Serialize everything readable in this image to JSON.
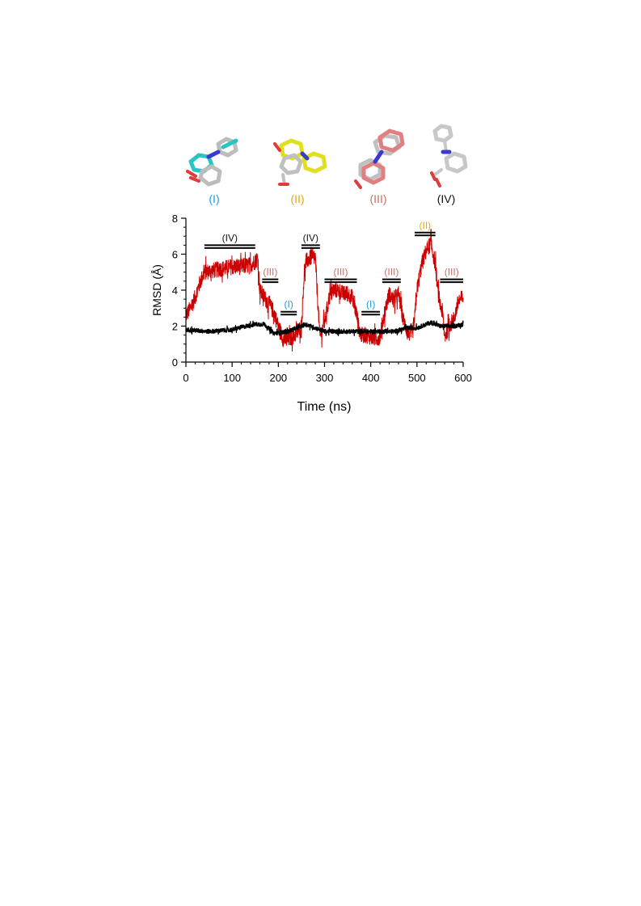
{
  "structures": [
    {
      "label": "(I)",
      "color": "#1a9fd9"
    },
    {
      "label": "(II)",
      "color": "#e6a817"
    },
    {
      "label": "(III)",
      "color": "#c96f66"
    },
    {
      "label": "(IV)",
      "color": "#111111"
    }
  ],
  "chart_data": {
    "type": "line",
    "xlabel": "Time (ns)",
    "ylabel": "RMSD (Å)",
    "xlim": [
      0,
      600
    ],
    "ylim": [
      0,
      8
    ],
    "xticks": [
      "0",
      "100",
      "200",
      "300",
      "400",
      "500",
      "600"
    ],
    "yticks": [
      "0",
      "2",
      "4",
      "6",
      "8"
    ],
    "series": [
      {
        "color": "#cc0000",
        "points": [
          [
            0,
            2.6
          ],
          [
            10,
            3.0
          ],
          [
            20,
            3.6
          ],
          [
            30,
            4.4
          ],
          [
            40,
            5.0
          ],
          [
            60,
            5.1
          ],
          [
            80,
            5.2
          ],
          [
            100,
            5.3
          ],
          [
            120,
            5.3
          ],
          [
            140,
            5.4
          ],
          [
            150,
            5.6
          ],
          [
            155,
            5.8
          ],
          [
            160,
            4.0
          ],
          [
            170,
            3.6
          ],
          [
            180,
            3.2
          ],
          [
            190,
            2.8
          ],
          [
            200,
            2.0
          ],
          [
            210,
            1.3
          ],
          [
            220,
            1.2
          ],
          [
            230,
            1.4
          ],
          [
            240,
            1.6
          ],
          [
            250,
            2.0
          ],
          [
            255,
            4.5
          ],
          [
            260,
            5.6
          ],
          [
            270,
            5.8
          ],
          [
            280,
            5.8
          ],
          [
            285,
            3.5
          ],
          [
            290,
            1.4
          ],
          [
            300,
            2.2
          ],
          [
            310,
            3.6
          ],
          [
            320,
            4.0
          ],
          [
            330,
            4.0
          ],
          [
            340,
            3.8
          ],
          [
            350,
            3.8
          ],
          [
            360,
            3.6
          ],
          [
            370,
            2.6
          ],
          [
            375,
            1.8
          ],
          [
            380,
            1.5
          ],
          [
            390,
            1.5
          ],
          [
            400,
            1.4
          ],
          [
            410,
            1.3
          ],
          [
            420,
            1.4
          ],
          [
            430,
            2.8
          ],
          [
            440,
            3.8
          ],
          [
            450,
            3.4
          ],
          [
            460,
            3.8
          ],
          [
            470,
            2.4
          ],
          [
            480,
            1.6
          ],
          [
            490,
            1.6
          ],
          [
            495,
            2.4
          ],
          [
            500,
            4.0
          ],
          [
            510,
            5.4
          ],
          [
            520,
            6.2
          ],
          [
            530,
            6.6
          ],
          [
            540,
            5.4
          ],
          [
            545,
            4.0
          ],
          [
            550,
            3.2
          ],
          [
            555,
            2.8
          ],
          [
            560,
            1.4
          ],
          [
            570,
            2.0
          ],
          [
            580,
            2.4
          ],
          [
            590,
            3.4
          ],
          [
            600,
            3.6
          ]
        ],
        "noise": 0.45
      },
      {
        "color": "#000000",
        "points": [
          [
            0,
            1.8
          ],
          [
            50,
            1.7
          ],
          [
            100,
            1.8
          ],
          [
            130,
            2.0
          ],
          [
            150,
            2.1
          ],
          [
            170,
            2.1
          ],
          [
            190,
            1.6
          ],
          [
            220,
            1.7
          ],
          [
            260,
            2.1
          ],
          [
            280,
            1.9
          ],
          [
            300,
            1.7
          ],
          [
            350,
            1.7
          ],
          [
            400,
            1.7
          ],
          [
            450,
            1.7
          ],
          [
            480,
            1.9
          ],
          [
            500,
            1.9
          ],
          [
            530,
            2.2
          ],
          [
            550,
            2.0
          ],
          [
            580,
            2.0
          ],
          [
            600,
            2.1
          ]
        ],
        "noise": 0.12
      }
    ],
    "annotations": [
      {
        "label": "(IV)",
        "x1": 40,
        "x2": 150,
        "y": 6.5,
        "color": "#111111"
      },
      {
        "label": "(III)",
        "x1": 165,
        "x2": 200,
        "y": 4.6,
        "color": "#c96f66"
      },
      {
        "label": "(I)",
        "x1": 205,
        "x2": 240,
        "y": 2.8,
        "color": "#1a9fd9"
      },
      {
        "label": "(IV)",
        "x1": 250,
        "x2": 290,
        "y": 6.5,
        "color": "#111111"
      },
      {
        "label": "(III)",
        "x1": 300,
        "x2": 370,
        "y": 4.6,
        "color": "#c96f66"
      },
      {
        "label": "(I)",
        "x1": 380,
        "x2": 420,
        "y": 2.8,
        "color": "#1a9fd9"
      },
      {
        "label": "(III)",
        "x1": 425,
        "x2": 465,
        "y": 4.6,
        "color": "#c96f66"
      },
      {
        "label": "(II)",
        "x1": 495,
        "x2": 540,
        "y": 7.2,
        "color": "#e6a817"
      },
      {
        "label": "(III)",
        "x1": 550,
        "x2": 600,
        "y": 4.6,
        "color": "#c96f66"
      }
    ]
  }
}
